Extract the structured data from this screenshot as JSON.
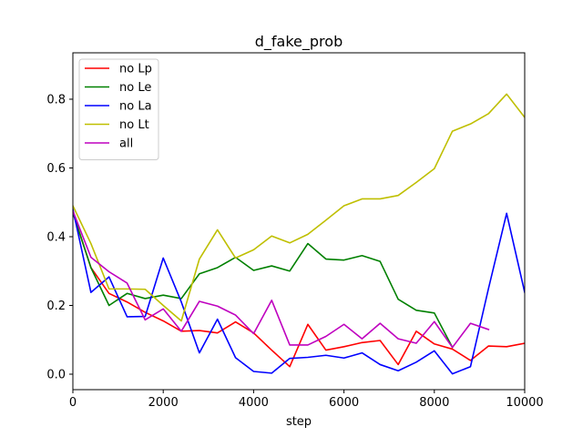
{
  "chart_data": {
    "type": "line",
    "title": "d_fake_prob",
    "xlabel": "step",
    "ylabel": "",
    "xlim": [
      0,
      10000
    ],
    "ylim": [
      -0.045,
      0.935
    ],
    "xticks": [
      0,
      2000,
      4000,
      6000,
      8000,
      10000
    ],
    "yticks": [
      0.0,
      0.2,
      0.4,
      0.6,
      0.8
    ],
    "xtick_labels": [
      "0",
      "2000",
      "4000",
      "6000",
      "8000",
      "10000"
    ],
    "ytick_labels": [
      "0.0",
      "0.2",
      "0.4",
      "0.6",
      "0.8"
    ],
    "grid": false,
    "legend_position": "upper-left",
    "series": [
      {
        "name": "no Lp",
        "color": "#ff0000",
        "x": [
          0,
          400,
          800,
          1200,
          1600,
          2000,
          2400,
          2800,
          3200,
          3600,
          4000,
          4400,
          4800,
          5200,
          5600,
          6000,
          6400,
          6800,
          7200,
          7600,
          8000,
          8400,
          8800,
          9200,
          9600,
          10000
        ],
        "y": [
          0.47,
          0.31,
          0.235,
          0.21,
          0.18,
          0.155,
          0.125,
          0.127,
          0.12,
          0.152,
          0.12,
          0.07,
          0.022,
          0.145,
          0.07,
          0.08,
          0.092,
          0.098,
          0.028,
          0.125,
          0.088,
          0.073,
          0.04,
          0.082,
          0.08,
          0.09
        ]
      },
      {
        "name": "no Le",
        "color": "#008000",
        "x": [
          0,
          400,
          800,
          1200,
          1600,
          2000,
          2400,
          2800,
          3200,
          3600,
          4000,
          4400,
          4800,
          5200,
          5600,
          6000,
          6400,
          6800,
          7200,
          7600,
          8000,
          8400
        ],
        "y": [
          0.47,
          0.31,
          0.2,
          0.235,
          0.22,
          0.23,
          0.22,
          0.292,
          0.31,
          0.34,
          0.302,
          0.315,
          0.3,
          0.38,
          0.335,
          0.332,
          0.345,
          0.328,
          0.218,
          0.186,
          0.178,
          0.078
        ]
      },
      {
        "name": "no La",
        "color": "#0000ff",
        "x": [
          0,
          400,
          800,
          1200,
          1600,
          2000,
          2400,
          2800,
          3200,
          3600,
          4000,
          4400,
          4800,
          5200,
          5600,
          6000,
          6400,
          6800,
          7200,
          7600,
          8000,
          8400,
          8800,
          9200,
          9600,
          10000
        ],
        "y": [
          0.48,
          0.238,
          0.283,
          0.167,
          0.168,
          0.338,
          0.21,
          0.062,
          0.16,
          0.048,
          0.008,
          0.003,
          0.046,
          0.049,
          0.055,
          0.047,
          0.062,
          0.028,
          0.01,
          0.035,
          0.068,
          0.001,
          0.022,
          0.25,
          0.468,
          0.238
        ]
      },
      {
        "name": "no Lt",
        "color": "#bfbf00",
        "x": [
          0,
          400,
          800,
          1200,
          1600,
          2000,
          2400,
          2800,
          3200,
          3600,
          4000,
          4400,
          4800,
          5200,
          5600,
          6000,
          6400,
          6800,
          7200,
          7600,
          8000,
          8400,
          8800,
          9200,
          9600,
          10000
        ],
        "y": [
          0.49,
          0.38,
          0.248,
          0.248,
          0.247,
          0.2,
          0.155,
          0.335,
          0.42,
          0.338,
          0.362,
          0.402,
          0.382,
          0.407,
          0.448,
          0.49,
          0.51,
          0.51,
          0.52,
          0.558,
          0.598,
          0.707,
          0.728,
          0.758,
          0.815,
          0.747
        ]
      },
      {
        "name": "all",
        "color": "#bf00bf",
        "x": [
          0,
          400,
          800,
          1200,
          1600,
          2000,
          2400,
          2800,
          3200,
          3600,
          4000,
          4400,
          4800,
          5200,
          5600,
          6000,
          6400,
          6800,
          7200,
          7600,
          8000,
          8400,
          8800,
          9200
        ],
        "y": [
          0.475,
          0.34,
          0.298,
          0.265,
          0.158,
          0.19,
          0.125,
          0.212,
          0.198,
          0.172,
          0.118,
          0.215,
          0.085,
          0.085,
          0.11,
          0.145,
          0.103,
          0.148,
          0.103,
          0.09,
          0.153,
          0.078,
          0.148,
          0.13
        ]
      }
    ]
  }
}
